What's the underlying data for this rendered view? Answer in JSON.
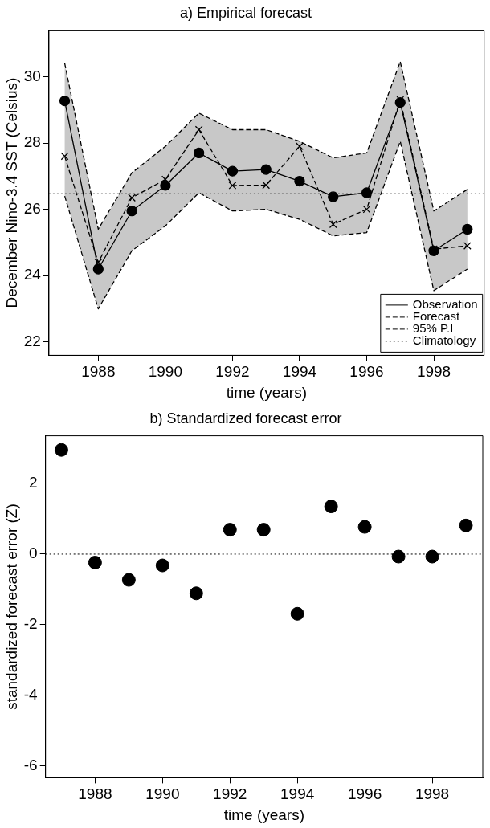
{
  "chart_data": [
    {
      "type": "line",
      "title": "a) Empirical forecast",
      "xlabel": "time (years)",
      "ylabel": "December Nino-3.4 SST (Celsius)",
      "x": [
        1987,
        1988,
        1989,
        1990,
        1991,
        1992,
        1993,
        1994,
        1995,
        1996,
        1997,
        1998,
        1999
      ],
      "series": [
        {
          "name": "Observation",
          "color": "#000000",
          "marker": "circle",
          "line_style": "solid",
          "values": [
            29.27,
            24.2,
            25.95,
            26.72,
            27.7,
            27.15,
            27.2,
            26.85,
            26.38,
            26.5,
            29.22,
            24.75,
            25.4
          ]
        },
        {
          "name": "Forecast",
          "color": "#000000",
          "marker": "cross",
          "line_style": "dashed",
          "values": [
            27.6,
            24.4,
            26.35,
            26.9,
            28.4,
            26.72,
            26.73,
            27.9,
            25.55,
            26.0,
            29.3,
            24.8,
            24.9
          ],
          "lower": [
            26.4,
            23.0,
            24.75,
            25.5,
            26.5,
            25.95,
            26.0,
            25.7,
            25.2,
            25.3,
            28.05,
            23.55,
            24.2
          ],
          "upper": [
            30.4,
            25.4,
            27.1,
            27.9,
            28.9,
            28.4,
            28.4,
            28.05,
            27.55,
            27.7,
            30.45,
            25.95,
            26.6
          ]
        },
        {
          "name": "95% P.I",
          "type": "line",
          "color": "#000000",
          "marker": "none",
          "line_style": "dashed",
          "values": [
            30.4,
            25.4,
            27.1,
            27.9,
            28.9,
            28.4,
            28.4,
            28.05,
            27.55,
            27.7,
            30.45,
            25.95,
            26.6
          ]
        },
        {
          "type": "line",
          "color": "#000000",
          "marker": "none",
          "line_style": "dashed",
          "values": [
            26.4,
            23.0,
            24.75,
            25.5,
            26.5,
            25.95,
            26.0,
            25.7,
            25.2,
            25.3,
            28.05,
            23.55,
            24.2
          ]
        }
      ],
      "ref_lines": [
        {
          "axis": "y",
          "value": 26.47,
          "label": "Climatology",
          "line_style": "dotted",
          "color": "#000000"
        }
      ],
      "xlim": [
        1986.53,
        1999.5
      ],
      "xticks": [
        1988,
        1990,
        1992,
        1994,
        1996,
        1998
      ],
      "ylim": [
        21.6,
        31.4
      ],
      "yticks": [
        22,
        24,
        26,
        28,
        30
      ],
      "legend": "bottom right"
    },
    {
      "type": "scatter",
      "title": "b) Standardized forecast error",
      "xlabel": "time (years)",
      "ylabel": "standardized forecast error (Z)",
      "x": [
        1987,
        1988,
        1989,
        1990,
        1991,
        1992,
        1993,
        1994,
        1995,
        1996,
        1997,
        1998,
        1999
      ],
      "values": [
        2.95,
        -0.24,
        -0.73,
        -0.32,
        -1.11,
        0.69,
        0.69,
        -1.69,
        1.35,
        0.77,
        -0.07,
        -0.07,
        0.81
      ],
      "color": "#000000",
      "marker": "circle",
      "ref_lines": [
        {
          "axis": "y",
          "value": 0,
          "line_style": "dotted",
          "color": "#000000"
        }
      ],
      "xlim": [
        1986.53,
        1999.5
      ],
      "xticks": [
        1988,
        1990,
        1992,
        1994,
        1996,
        1998
      ],
      "ylim": [
        -6.33,
        3.35
      ],
      "yticks": [
        -6,
        -4,
        -2,
        0,
        2
      ]
    }
  ]
}
